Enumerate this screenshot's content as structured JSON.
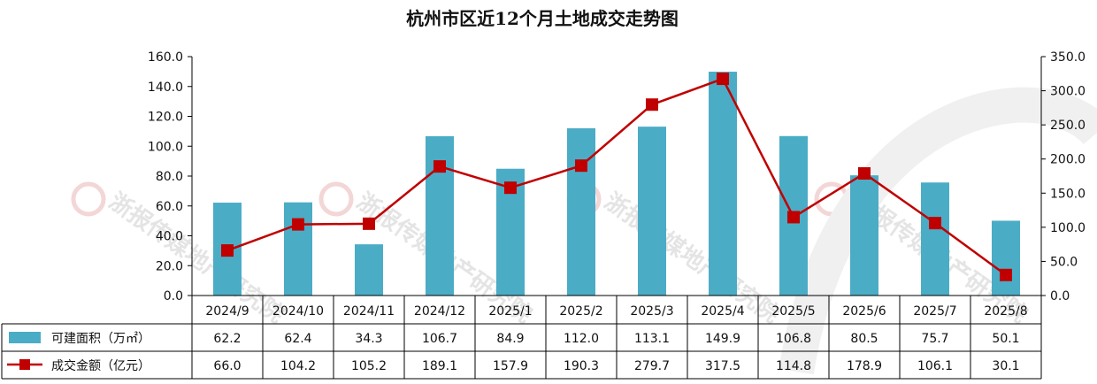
{
  "chart_data": {
    "type": "bar",
    "title": "杭州市区近12个月土地成交走势图",
    "categories": [
      "2024/9",
      "2024/10",
      "2024/11",
      "2024/12",
      "2025/1",
      "2025/2",
      "2025/3",
      "2025/4",
      "2025/5",
      "2025/6",
      "2025/7",
      "2025/8"
    ],
    "series": [
      {
        "name": "可建面积（万㎡）",
        "type": "bar",
        "axis": "left",
        "color": "#4bacc6",
        "values": [
          62.2,
          62.4,
          34.3,
          106.7,
          84.9,
          112.0,
          113.1,
          149.9,
          106.8,
          80.5,
          75.7,
          50.1
        ],
        "labels": [
          "62.2",
          "62.4",
          "34.3",
          "106.7",
          "84.9",
          "112.0",
          "113.1",
          "149.9",
          "106.8",
          "80.5",
          "75.7",
          "50.1"
        ]
      },
      {
        "name": "成交金额（亿元）",
        "type": "line",
        "axis": "right",
        "color": "#c00000",
        "values": [
          66.0,
          104.2,
          105.2,
          189.1,
          157.9,
          190.3,
          279.7,
          317.5,
          114.8,
          178.9,
          106.1,
          30.1
        ],
        "labels": [
          "66.0",
          "104.2",
          "105.2",
          "189.1",
          "157.9",
          "190.3",
          "279.7",
          "317.5",
          "114.8",
          "178.9",
          "106.1",
          "30.1"
        ]
      }
    ],
    "y_left": {
      "min": 0,
      "max": 160,
      "ticks": [
        "0.0",
        "20.0",
        "40.0",
        "60.0",
        "80.0",
        "100.0",
        "120.0",
        "140.0",
        "160.0"
      ]
    },
    "y_right": {
      "min": 0,
      "max": 350,
      "ticks": [
        "0.0",
        "50.0",
        "100.0",
        "150.0",
        "200.0",
        "250.0",
        "300.0",
        "350.0"
      ]
    },
    "grid": false,
    "legend": "data-table-left",
    "watermark": "浙报传媒地产研究院"
  }
}
